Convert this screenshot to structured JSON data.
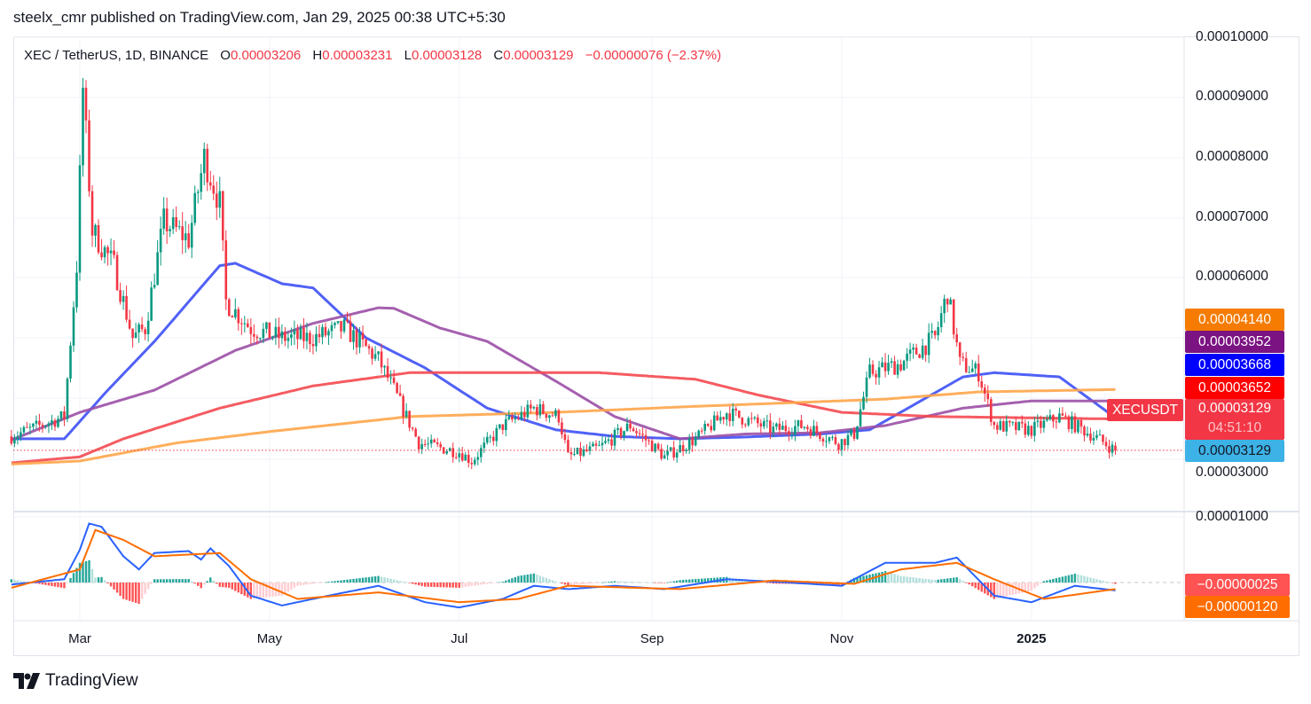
{
  "publisher_line": "steelx_cmr published on TradingView.com, Jan 29, 2025 00:38 UTC+5:30",
  "legend": {
    "symbol": "XEC / TetherUS, 1D, BINANCE",
    "o_label": "O",
    "open": "0.00003206",
    "h_label": "H",
    "high": "0.00003231",
    "l_label": "L",
    "low": "0.00003128",
    "c_label": "C",
    "close": "0.00003129",
    "change": "−0.00000076 (−2.37%)"
  },
  "price_axis": [
    "0.00010000",
    "0.00009000",
    "0.00008000",
    "0.00007000",
    "0.00006000",
    "0.00003000"
  ],
  "macd_axis": [
    "0.00001000"
  ],
  "time_axis": [
    {
      "label": "Mar",
      "date": "2024-03-01",
      "bold": false
    },
    {
      "label": "May",
      "date": "2024-05-01",
      "bold": false
    },
    {
      "label": "Jul",
      "date": "2024-07-01",
      "bold": false
    },
    {
      "label": "Sep",
      "date": "2024-09-01",
      "bold": false
    },
    {
      "label": "Nov",
      "date": "2024-11-01",
      "bold": false
    },
    {
      "label": "2025",
      "date": "2025-01-01",
      "bold": true
    }
  ],
  "price_tags": [
    {
      "value": "0.00004140",
      "color": "#f57c00",
      "text_color": "#ffffff"
    },
    {
      "value": "0.00003952",
      "color": "#7b1382",
      "text_color": "#ffffff"
    },
    {
      "value": "0.00003668",
      "color": "#0000ff",
      "text_color": "#ffffff"
    },
    {
      "value": "0.00003652",
      "color": "#ff0000",
      "text_color": "#ffffff"
    }
  ],
  "last_price_tag": {
    "symbol": "XECUSDT",
    "value": "0.00003129",
    "countdown": "04:51:10",
    "color": "#f23645"
  },
  "bid_tag": {
    "value": "0.00003129",
    "color": "#3db2e6",
    "text_color": "#131722"
  },
  "macd_tags": [
    {
      "value": "−0.00000025",
      "color": "#ff5252"
    },
    {
      "value": "−0.00000120",
      "color": "#ff6d00"
    }
  ],
  "logo_text": "TradingView",
  "colors": {
    "up": "#089981",
    "down": "#f23645",
    "ma_blue": "#3d50f5",
    "ma_purple": "#9b4fa6",
    "ma_red": "#f44950",
    "ma_orange": "#ffa54a",
    "macd": "#2962ff",
    "signal": "#ff6d00"
  },
  "chart_data": {
    "type": "candlestick",
    "symbol": "XECUSDT",
    "interval": "1D",
    "x_range": [
      "2024-02-08",
      "2025-01-28"
    ],
    "ylim": [
      2.4e-05,
      0.0001
    ],
    "grid": true,
    "close_path": [
      [
        "2024-02-08",
        3.36e-05
      ],
      [
        "2024-02-25",
        3.69e-05
      ],
      [
        "2024-02-29",
        6.2e-05
      ],
      [
        "2024-03-02",
        9.15e-05
      ],
      [
        "2024-03-05",
        6.78e-05
      ],
      [
        "2024-03-12",
        6.2e-05
      ],
      [
        "2024-03-18",
        5e-05
      ],
      [
        "2024-03-22",
        5.16e-05
      ],
      [
        "2024-03-28",
        6.93e-05
      ],
      [
        "2024-04-05",
        6.64e-05
      ],
      [
        "2024-04-10",
        8e-05
      ],
      [
        "2024-04-15",
        7.23e-05
      ],
      [
        "2024-04-17",
        5.6e-05
      ],
      [
        "2024-04-25",
        5.16e-05
      ],
      [
        "2024-05-05",
        5e-05
      ],
      [
        "2024-05-15",
        5e-05
      ],
      [
        "2024-05-25",
        5.16e-05
      ],
      [
        "2024-06-05",
        4.64e-05
      ],
      [
        "2024-06-10",
        4.13e-05
      ],
      [
        "2024-06-18",
        3.25e-05
      ],
      [
        "2024-07-01",
        3.1e-05
      ],
      [
        "2024-07-05",
        2.95e-05
      ],
      [
        "2024-07-15",
        3.54e-05
      ],
      [
        "2024-07-25",
        3.83e-05
      ],
      [
        "2024-08-02",
        3.69e-05
      ],
      [
        "2024-08-05",
        3.02e-05
      ],
      [
        "2024-08-15",
        3.17e-05
      ],
      [
        "2024-08-25",
        3.54e-05
      ],
      [
        "2024-09-05",
        3.02e-05
      ],
      [
        "2024-09-15",
        3.32e-05
      ],
      [
        "2024-09-25",
        3.76e-05
      ],
      [
        "2024-10-10",
        3.47e-05
      ],
      [
        "2024-10-20",
        3.54e-05
      ],
      [
        "2024-10-31",
        3.25e-05
      ],
      [
        "2024-11-05",
        3.4e-05
      ],
      [
        "2024-11-10",
        4.42e-05
      ],
      [
        "2024-11-20",
        4.57e-05
      ],
      [
        "2024-12-01",
        5e-05
      ],
      [
        "2024-12-05",
        5.75e-05
      ],
      [
        "2024-12-09",
        4.57e-05
      ],
      [
        "2024-12-15",
        4.42e-05
      ],
      [
        "2024-12-20",
        3.54e-05
      ],
      [
        "2025-01-01",
        3.47e-05
      ],
      [
        "2025-01-10",
        3.69e-05
      ],
      [
        "2025-01-20",
        3.4e-05
      ],
      [
        "2025-01-28",
        3.129e-05
      ]
    ],
    "moving_averages": [
      {
        "color": "#3d50f5",
        "last": 3.668e-05,
        "points": [
          [
            "2024-02-08",
            3.32e-05
          ],
          [
            "2024-02-25",
            3.32e-05
          ],
          [
            "2024-03-10",
            4.13e-05
          ],
          [
            "2024-03-25",
            4.94e-05
          ],
          [
            "2024-04-15",
            6.2e-05
          ],
          [
            "2024-04-20",
            6.24e-05
          ],
          [
            "2024-05-05",
            5.9e-05
          ],
          [
            "2024-05-15",
            5.83e-05
          ],
          [
            "2024-06-01",
            5e-05
          ],
          [
            "2024-06-20",
            4.5e-05
          ],
          [
            "2024-07-10",
            3.83e-05
          ],
          [
            "2024-08-01",
            3.47e-05
          ],
          [
            "2024-08-20",
            3.36e-05
          ],
          [
            "2024-09-10",
            3.32e-05
          ],
          [
            "2024-10-01",
            3.35e-05
          ],
          [
            "2024-10-25",
            3.4e-05
          ],
          [
            "2024-11-10",
            3.47e-05
          ],
          [
            "2024-11-25",
            3.91e-05
          ],
          [
            "2024-12-10",
            4.35e-05
          ],
          [
            "2024-12-20",
            4.42e-05
          ],
          [
            "2025-01-10",
            4.35e-05
          ],
          [
            "2025-01-28",
            3.67e-05
          ]
        ]
      },
      {
        "color": "#9b4fa6",
        "last": 3.952e-05,
        "points": [
          [
            "2024-02-08",
            3.3e-05
          ],
          [
            "2024-03-01",
            3.76e-05
          ],
          [
            "2024-03-25",
            4.13e-05
          ],
          [
            "2024-04-20",
            4.79e-05
          ],
          [
            "2024-05-15",
            5.24e-05
          ],
          [
            "2024-06-05",
            5.5e-05
          ],
          [
            "2024-06-10",
            5.49e-05
          ],
          [
            "2024-06-25",
            5.16e-05
          ],
          [
            "2024-07-10",
            4.94e-05
          ],
          [
            "2024-08-01",
            4.28e-05
          ],
          [
            "2024-08-20",
            3.69e-05
          ],
          [
            "2024-09-10",
            3.32e-05
          ],
          [
            "2024-10-01",
            3.4e-05
          ],
          [
            "2024-10-25",
            3.42e-05
          ],
          [
            "2024-11-15",
            3.54e-05
          ],
          [
            "2024-12-10",
            3.83e-05
          ],
          [
            "2025-01-01",
            3.95e-05
          ],
          [
            "2025-01-28",
            3.95e-05
          ]
        ]
      },
      {
        "color": "#f44950",
        "last": 3.652e-05,
        "points": [
          [
            "2024-02-08",
            2.92e-05
          ],
          [
            "2024-03-01",
            3.02e-05
          ],
          [
            "2024-03-15",
            3.32e-05
          ],
          [
            "2024-04-15",
            3.83e-05
          ],
          [
            "2024-05-15",
            4.2e-05
          ],
          [
            "2024-06-15",
            4.42e-05
          ],
          [
            "2024-07-15",
            4.42e-05
          ],
          [
            "2024-08-15",
            4.42e-05
          ],
          [
            "2024-09-15",
            4.31e-05
          ],
          [
            "2024-10-05",
            4.05e-05
          ],
          [
            "2024-11-01",
            3.76e-05
          ],
          [
            "2024-12-01",
            3.69e-05
          ],
          [
            "2025-01-28",
            3.65e-05
          ]
        ]
      },
      {
        "color": "#ffa54a",
        "last": 4.14e-05,
        "points": [
          [
            "2024-02-08",
            2.9e-05
          ],
          [
            "2024-03-01",
            2.95e-05
          ],
          [
            "2024-04-01",
            3.25e-05
          ],
          [
            "2024-05-01",
            3.44e-05
          ],
          [
            "2024-06-15",
            3.69e-05
          ],
          [
            "2024-08-01",
            3.76e-05
          ],
          [
            "2024-09-15",
            3.86e-05
          ],
          [
            "2024-11-15",
            3.98e-05
          ],
          [
            "2024-12-15",
            4.1e-05
          ],
          [
            "2025-01-28",
            4.14e-05
          ]
        ]
      }
    ],
    "macd": {
      "macd_line": [
        [
          "2024-02-08",
          -3e-07
        ],
        [
          "2024-02-25",
          5e-07
        ],
        [
          "2024-03-01",
          5e-06
        ],
        [
          "2024-03-04",
          9e-06
        ],
        [
          "2024-03-08",
          8.5e-06
        ],
        [
          "2024-03-15",
          4e-06
        ],
        [
          "2024-03-20",
          2e-06
        ],
        [
          "2024-03-25",
          4.5e-06
        ],
        [
          "2024-04-05",
          4.8e-06
        ],
        [
          "2024-04-09",
          3.5e-06
        ],
        [
          "2024-04-12",
          5.2e-06
        ],
        [
          "2024-04-18",
          2.5e-06
        ],
        [
          "2024-04-25",
          -2e-06
        ],
        [
          "2024-05-05",
          -3.5e-06
        ],
        [
          "2024-05-20",
          -2e-06
        ],
        [
          "2024-06-05",
          -5e-07
        ],
        [
          "2024-06-20",
          -3e-06
        ],
        [
          "2024-07-01",
          -3.8e-06
        ],
        [
          "2024-07-15",
          -2.5e-06
        ],
        [
          "2024-07-25",
          -5e-07
        ],
        [
          "2024-08-05",
          -1e-06
        ],
        [
          "2024-08-20",
          -5e-07
        ],
        [
          "2024-09-05",
          -1e-06
        ],
        [
          "2024-09-25",
          5e-07
        ],
        [
          "2024-10-15",
          0.0
        ],
        [
          "2024-11-01",
          -5e-07
        ],
        [
          "2024-11-15",
          3e-06
        ],
        [
          "2024-12-01",
          3e-06
        ],
        [
          "2024-12-08",
          3.8e-06
        ],
        [
          "2024-12-20",
          -2e-06
        ],
        [
          "2025-01-01",
          -3e-06
        ],
        [
          "2025-01-15",
          -5e-07
        ],
        [
          "2025-01-28",
          -1.2e-06
        ]
      ],
      "signal_line": [
        [
          "2024-02-08",
          -8e-07
        ],
        [
          "2024-03-01",
          2e-06
        ],
        [
          "2024-03-06",
          8e-06
        ],
        [
          "2024-03-15",
          6.5e-06
        ],
        [
          "2024-03-25",
          4e-06
        ],
        [
          "2024-04-15",
          4.5e-06
        ],
        [
          "2024-04-25",
          5e-07
        ],
        [
          "2024-05-10",
          -2.5e-06
        ],
        [
          "2024-06-05",
          -1.5e-06
        ],
        [
          "2024-07-01",
          -3e-06
        ],
        [
          "2024-07-20",
          -2.5e-06
        ],
        [
          "2024-08-05",
          -5e-07
        ],
        [
          "2024-09-10",
          -1e-06
        ],
        [
          "2024-10-10",
          3e-07
        ],
        [
          "2024-11-05",
          -2e-07
        ],
        [
          "2024-11-20",
          2e-06
        ],
        [
          "2024-12-08",
          3e-06
        ],
        [
          "2024-12-20",
          5e-07
        ],
        [
          "2025-01-05",
          -2.5e-06
        ],
        [
          "2025-01-28",
          -1e-06
        ]
      ]
    }
  }
}
